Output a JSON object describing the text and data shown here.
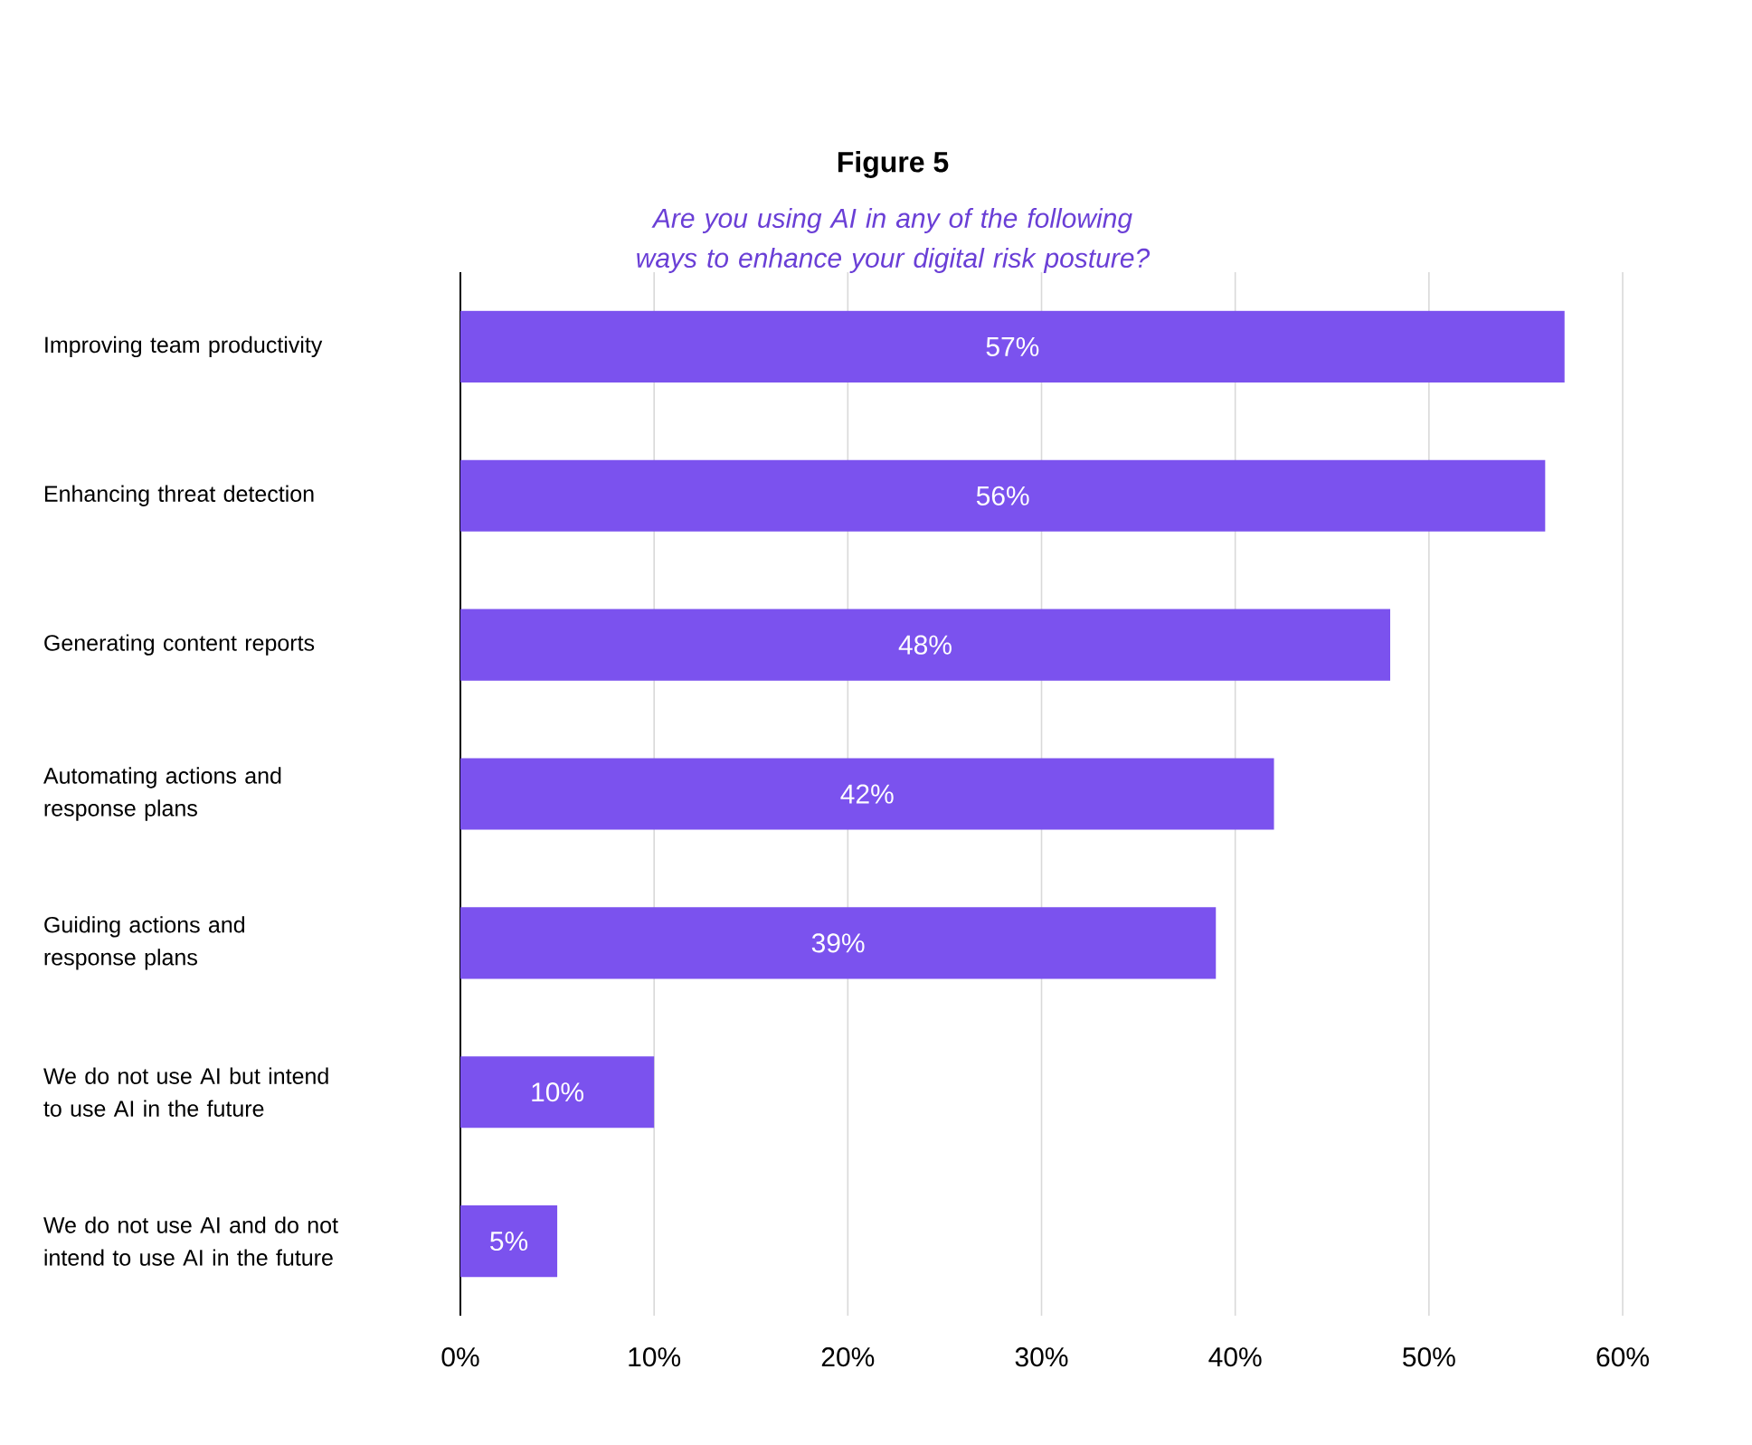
{
  "chart_data": {
    "type": "bar",
    "orientation": "horizontal",
    "title": "Figure 5",
    "subtitle": "Are you using AI in any of the following ways to enhance your digital risk posture?",
    "categories": [
      "Improving team productivity",
      "Enhancing threat detection",
      "Generating content reports",
      "Automating actions and response plans",
      "Guiding actions and response plans",
      "We do not use AI but intend to use AI in the future",
      "We do not use AI and do not intend to use AI in the future"
    ],
    "values": [
      57,
      56,
      48,
      42,
      39,
      10,
      5
    ],
    "value_labels": [
      "57%",
      "56%",
      "48%",
      "42%",
      "39%",
      "10%",
      "5%"
    ],
    "color": "#7b52ee",
    "xlim": [
      0,
      60
    ],
    "xticks": [
      {
        "value": 0,
        "label": "0%"
      },
      {
        "value": 10,
        "label": "10%"
      },
      {
        "value": 20,
        "label": "20%"
      },
      {
        "value": 30,
        "label": "30%"
      },
      {
        "value": 40,
        "label": "40%"
      },
      {
        "value": 50,
        "label": "50%"
      },
      {
        "value": 60,
        "label": "60%"
      }
    ],
    "grid": "x"
  }
}
